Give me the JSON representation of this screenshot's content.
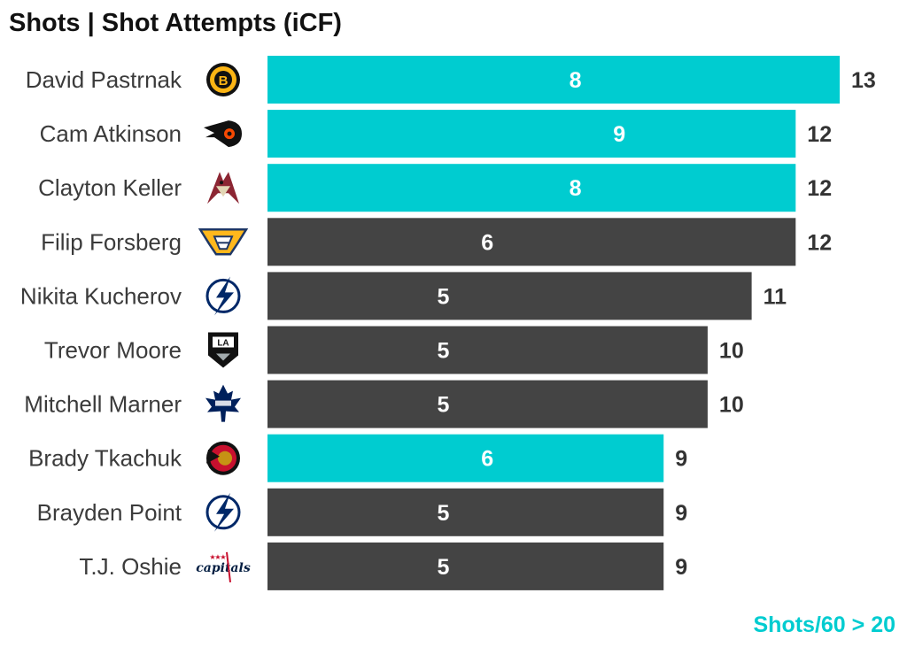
{
  "colors": {
    "highlight": "#00ccd0",
    "default": "#444444"
  },
  "chart_data": {
    "type": "bar",
    "orientation": "horizontal",
    "title": "Shots | Shot Attempts (iCF)",
    "footnote": "Shots/60 > 20",
    "xlim": [
      0,
      13
    ],
    "grid": false,
    "categories": [
      "David Pastrnak",
      "Cam Atkinson",
      "Clayton Keller",
      "Filip Forsberg",
      "Nikita Kucherov",
      "Trevor Moore",
      "Mitchell Marner",
      "Brady Tkachuk",
      "Brayden Point",
      "T.J. Oshie"
    ],
    "series": [
      {
        "name": "",
        "values": [
          8,
          9,
          8,
          6,
          5,
          5,
          5,
          6,
          5,
          5
        ]
      },
      {
        "name": "",
        "values": [
          13,
          12,
          12,
          12,
          11,
          10,
          10,
          9,
          9,
          9
        ]
      }
    ],
    "highlighted": [
      true,
      true,
      true,
      false,
      false,
      false,
      false,
      true,
      false,
      false
    ],
    "team_logos": [
      "bruins-icon",
      "flyers-icon",
      "coyotes-icon",
      "predators-icon",
      "lightning-icon",
      "kings-icon",
      "maple-leafs-icon",
      "senators-icon",
      "lightning-icon",
      "capitals-icon"
    ]
  }
}
